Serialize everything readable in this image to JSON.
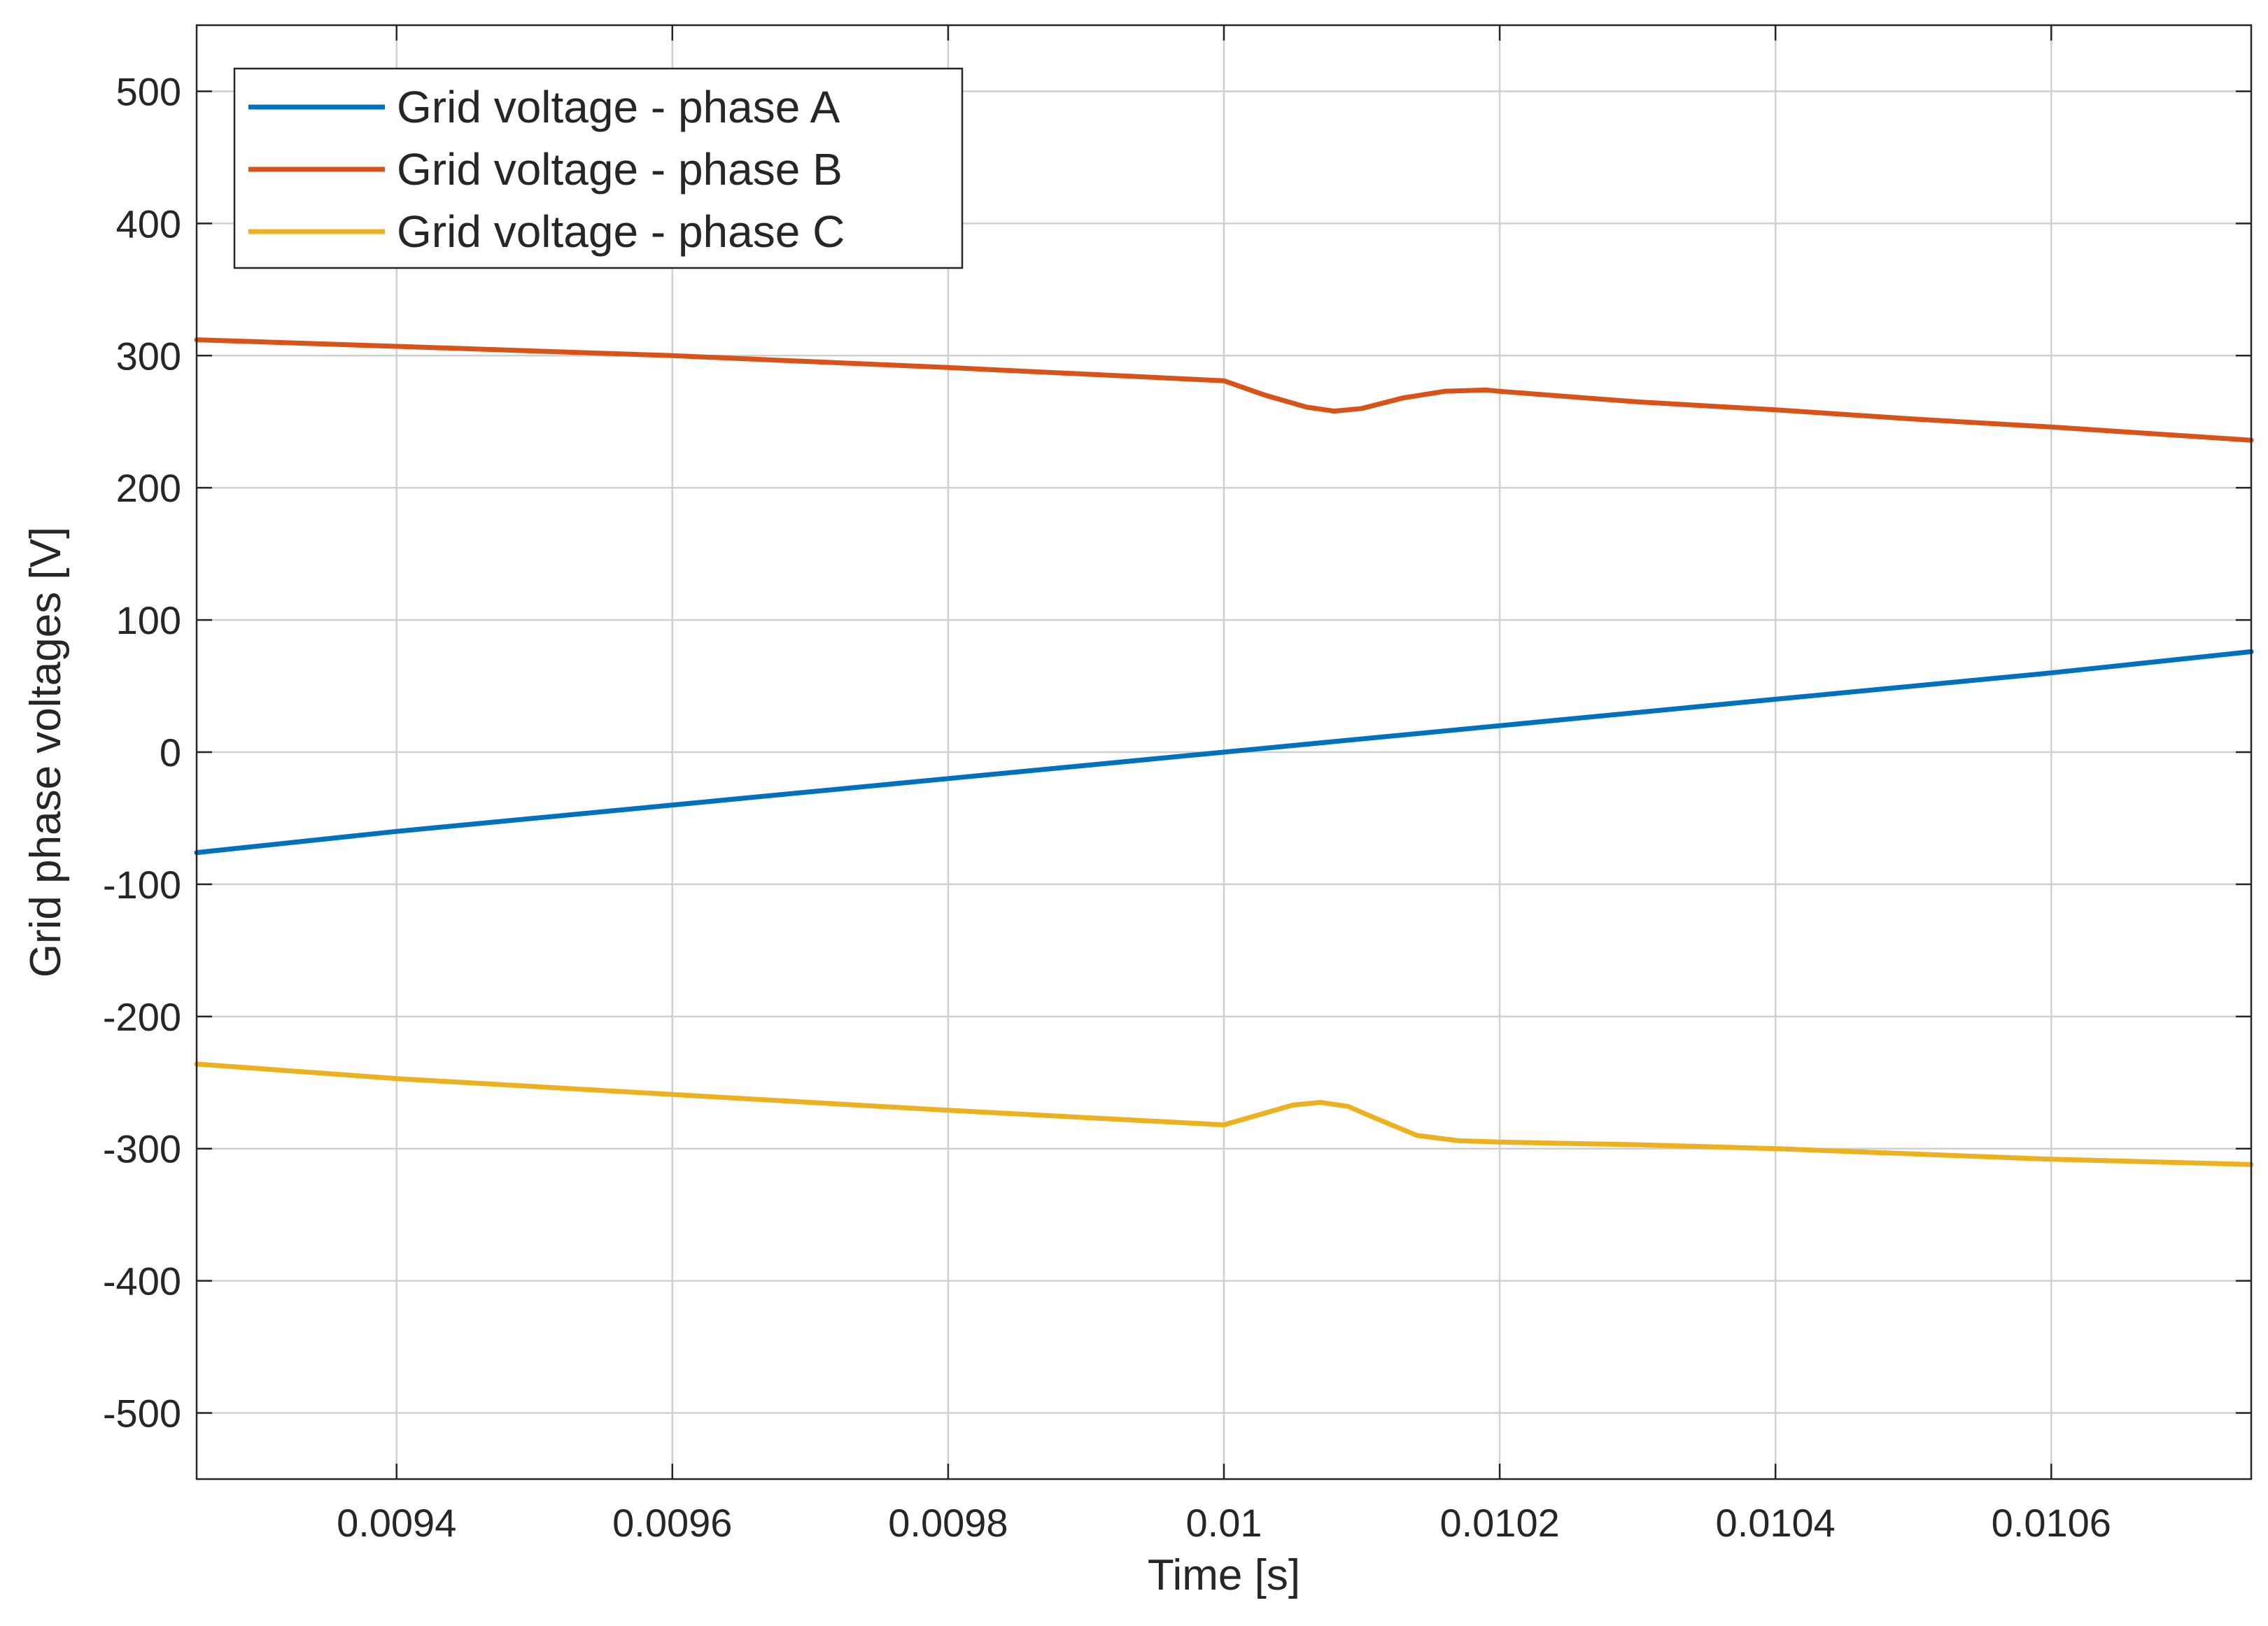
{
  "chart_data": {
    "type": "line",
    "title": "",
    "xlabel": "Time [s]",
    "ylabel": "Grid phase voltages [V]",
    "xlim": [
      0.009255,
      0.010745
    ],
    "ylim": [
      -550,
      550
    ],
    "grid": true,
    "legend_position": "top-left",
    "xticks": [
      0.0094,
      0.0096,
      0.0098,
      0.01,
      0.0102,
      0.0104,
      0.0106
    ],
    "xtick_labels": [
      "0.0094",
      "0.0096",
      "0.0098",
      "0.01",
      "0.0102",
      "0.0104",
      "0.0106"
    ],
    "yticks": [
      500,
      400,
      300,
      200,
      100,
      0,
      -100,
      -200,
      -300,
      -400,
      -500
    ],
    "ytick_labels": [
      "500",
      "400",
      "300",
      "200",
      "100",
      "0",
      "-100",
      "-200",
      "-300",
      "-400",
      "-500"
    ],
    "series": [
      {
        "name": "Grid voltage - phase A",
        "color": "#0072BD",
        "x": [
          0.009255,
          0.0094,
          0.0096,
          0.0098,
          0.01,
          0.0102,
          0.0104,
          0.0106,
          0.010745
        ],
        "y": [
          -76,
          -60,
          -40,
          -20,
          0,
          20,
          40,
          60,
          76
        ]
      },
      {
        "name": "Grid voltage - phase B",
        "color": "#D95319",
        "x": [
          0.009255,
          0.0094,
          0.0096,
          0.0098,
          0.01,
          0.01003,
          0.01006,
          0.01008,
          0.0101,
          0.01013,
          0.01016,
          0.01019,
          0.0102,
          0.0103,
          0.0104,
          0.0105,
          0.0106,
          0.010745
        ],
        "y": [
          312,
          307,
          300,
          291,
          281,
          270,
          261,
          258,
          260,
          268,
          273,
          274,
          273,
          265,
          259,
          252,
          246,
          236
        ]
      },
      {
        "name": "Grid voltage - phase C",
        "color": "#EDB120",
        "x": [
          0.009255,
          0.0094,
          0.0096,
          0.0098,
          0.01,
          0.01003,
          0.01005,
          0.01007,
          0.01009,
          0.01011,
          0.01014,
          0.01017,
          0.0102,
          0.0103,
          0.0104,
          0.0105,
          0.0106,
          0.010745
        ],
        "y": [
          -236,
          -247,
          -259,
          -271,
          -282,
          -273,
          -267,
          -265,
          -268,
          -277,
          -290,
          -294,
          -295,
          -297,
          -300,
          -304,
          -308,
          -312
        ]
      }
    ]
  }
}
